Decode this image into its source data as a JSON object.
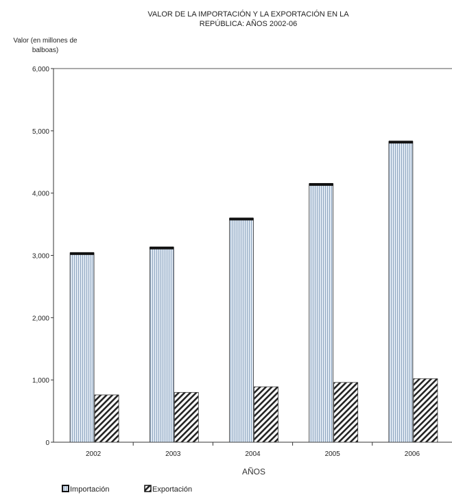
{
  "chart_data": {
    "type": "bar",
    "title_line1": "VALOR DE LA IMPORTACIÓN Y LA EXPORTACIÓN EN LA",
    "title_line2": "REPÚBLICA:  AÑOS 2002-06",
    "ylabel_line1": "Valor (en millones de",
    "ylabel_line2": "balboas)",
    "xlabel": "AÑOS",
    "categories": [
      "2002",
      "2003",
      "2004",
      "2005",
      "2006"
    ],
    "series": [
      {
        "name": "Importación",
        "values": [
          3040,
          3130,
          3595,
          4150,
          4830
        ],
        "pattern": "vertical-stripes",
        "color": "#c9d6e6"
      },
      {
        "name": "Exportación",
        "values": [
          760,
          800,
          890,
          960,
          1020
        ],
        "pattern": "diagonal-hatch",
        "color": "#222222"
      }
    ],
    "ylim": [
      0,
      6000
    ],
    "yticks": [
      "0",
      "1,000",
      "2,000",
      "3,000",
      "4,000",
      "5,000",
      "6,000"
    ],
    "ytick_values": [
      0,
      1000,
      2000,
      3000,
      4000,
      5000,
      6000
    ],
    "grid": false,
    "legend_position": "bottom-left"
  }
}
